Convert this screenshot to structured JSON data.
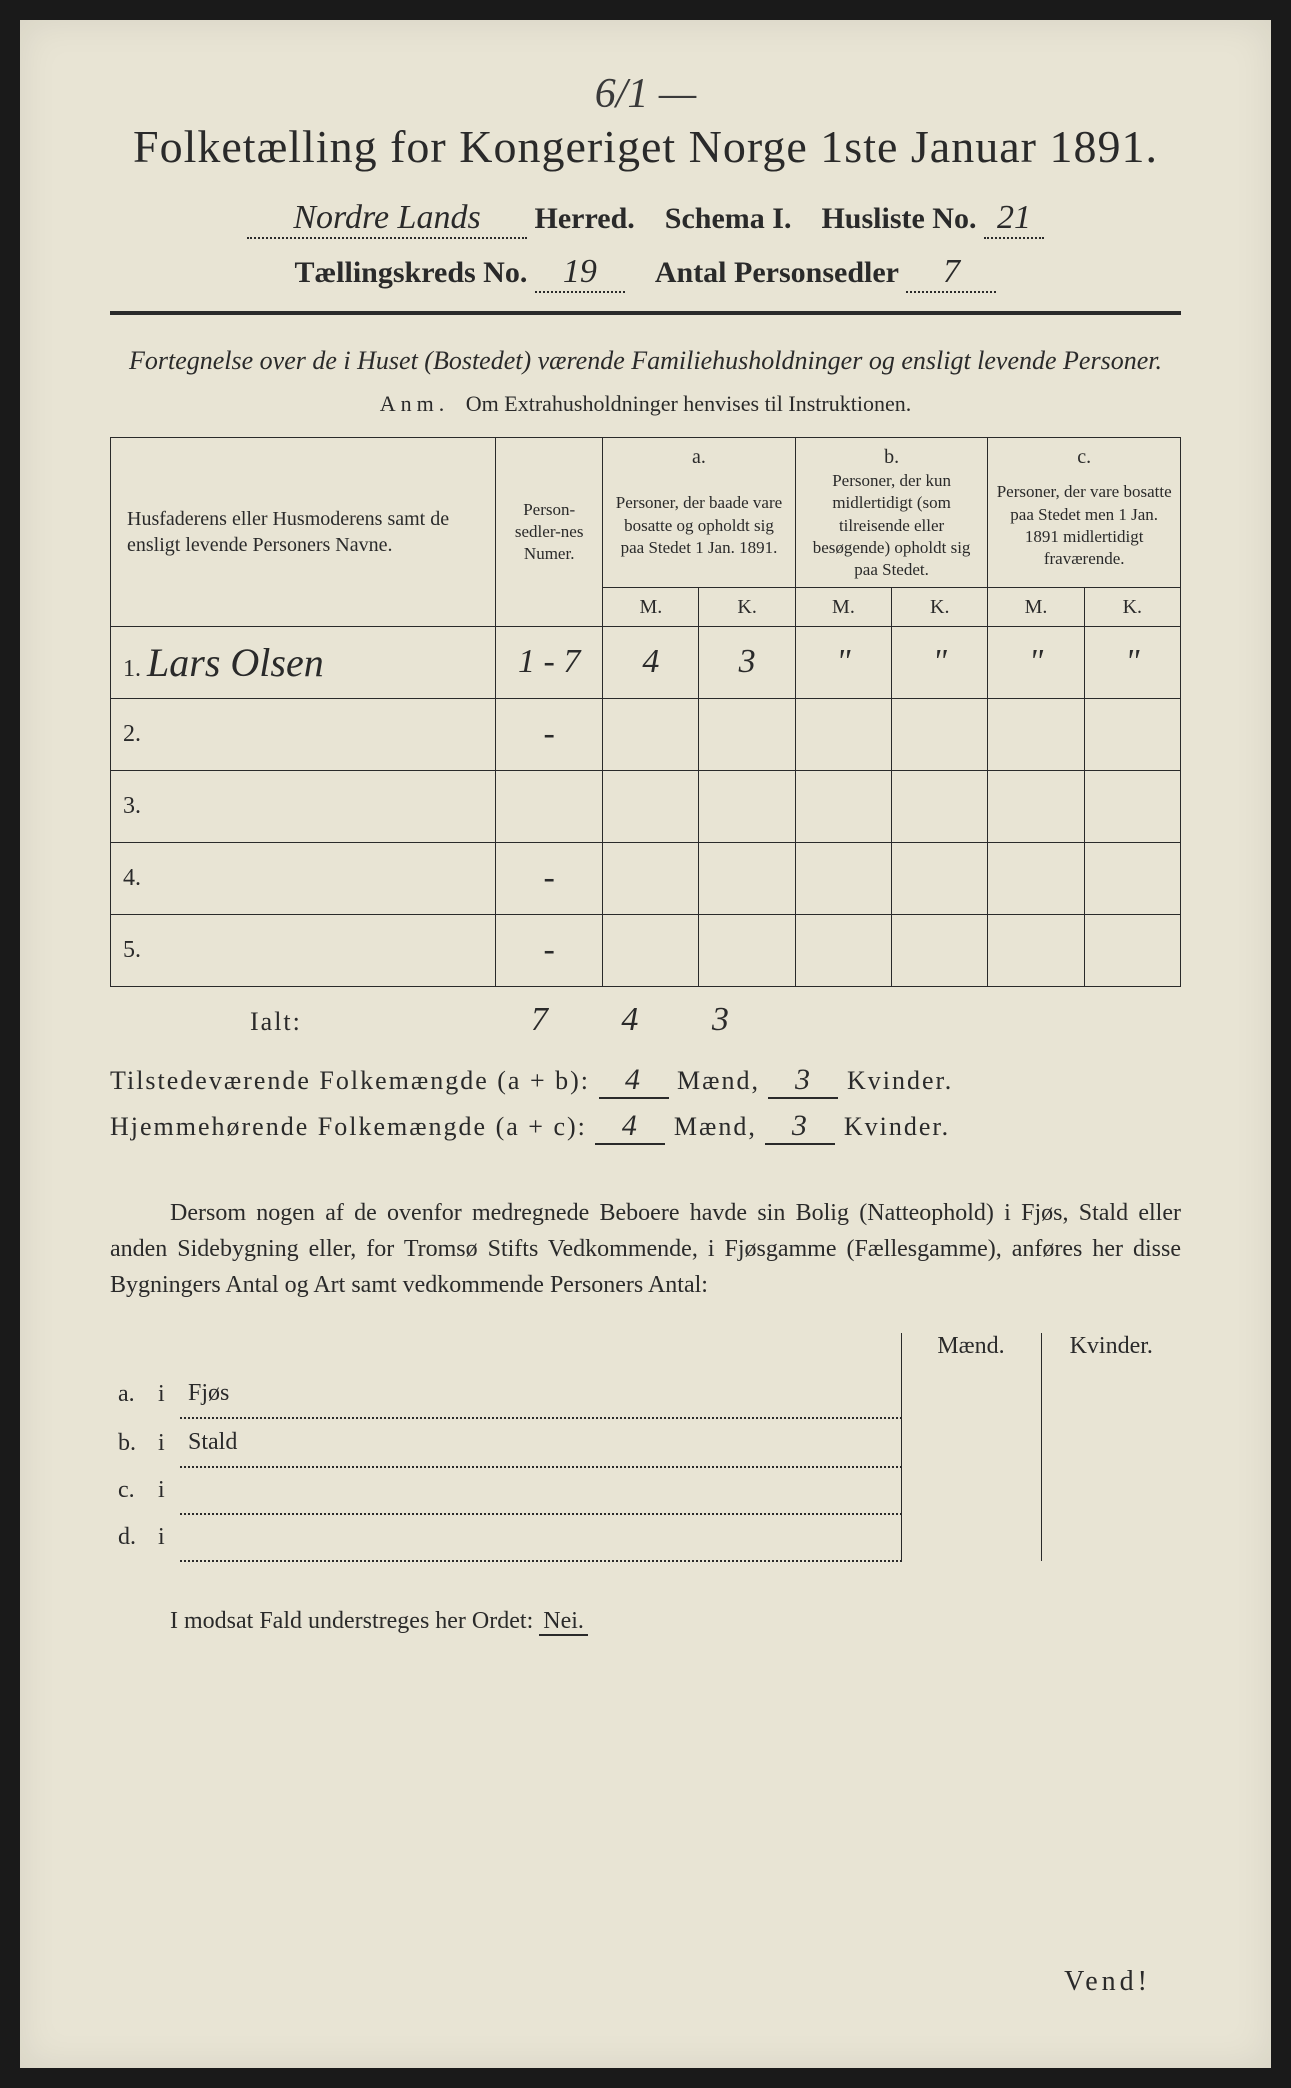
{
  "page_annotation": "6/1 —",
  "title": "Folketælling for Kongeriget Norge 1ste Januar 1891.",
  "header": {
    "herred_value": "Nordre Lands",
    "herred_label": "Herred.",
    "schema_label": "Schema I.",
    "husliste_label": "Husliste No.",
    "husliste_value": "21",
    "kreds_label": "Tællingskreds No.",
    "kreds_value": "19",
    "antal_label": "Antal Personsedler",
    "antal_value": "7"
  },
  "subtitle": "Fortegnelse over de i Huset (Bostedet) værende Familiehusholdninger og ensligt levende Personer.",
  "anm": {
    "label": "Anm.",
    "text": "Om Extrahusholdninger henvises til Instruktionen."
  },
  "table": {
    "col_names": "Husfaderens eller Husmoderens samt de ensligt levende Personers Navne.",
    "col_num": "Person-sedler-nes Numer.",
    "col_a_label": "a.",
    "col_a_desc": "Personer, der baade vare bosatte og opholdt sig paa Stedet 1 Jan. 1891.",
    "col_b_label": "b.",
    "col_b_desc": "Personer, der kun midlertidigt (som tilreisende eller besøgende) opholdt sig paa Stedet.",
    "col_c_label": "c.",
    "col_c_desc": "Personer, der vare bosatte paa Stedet men 1 Jan. 1891 midlertidigt fraværende.",
    "m": "M.",
    "k": "K.",
    "rows": [
      {
        "n": "1.",
        "name": "Lars Olsen",
        "num": "1 - 7",
        "aM": "4",
        "aK": "3",
        "bM": "\"",
        "bK": "\"",
        "cM": "\"",
        "cK": "\""
      },
      {
        "n": "2.",
        "name": "",
        "num": "-",
        "aM": "",
        "aK": "",
        "bM": "",
        "bK": "",
        "cM": "",
        "cK": ""
      },
      {
        "n": "3.",
        "name": "",
        "num": "",
        "aM": "",
        "aK": "",
        "bM": "",
        "bK": "",
        "cM": "",
        "cK": ""
      },
      {
        "n": "4.",
        "name": "",
        "num": "-",
        "aM": "",
        "aK": "",
        "bM": "",
        "bK": "",
        "cM": "",
        "cK": ""
      },
      {
        "n": "5.",
        "name": "",
        "num": "-",
        "aM": "",
        "aK": "",
        "bM": "",
        "bK": "",
        "cM": "",
        "cK": ""
      }
    ],
    "totals": {
      "num": "7",
      "aM": "4",
      "aK": "3"
    }
  },
  "ialt_label": "Ialt:",
  "summary": {
    "line1_label": "Tilstedeværende Folkemængde (a + b):",
    "line2_label": "Hjemmehørende Folkemængde (a + c):",
    "maend": "Mænd,",
    "kvinder": "Kvinder.",
    "l1_m": "4",
    "l1_k": "3",
    "l2_m": "4",
    "l2_k": "3"
  },
  "paragraph": "Dersom nogen af de ovenfor medregnede Beboere havde sin Bolig (Natteophold) i Fjøs, Stald eller anden Sidebygning eller, for Tromsø Stifts Vedkommende, i Fjøsgamme (Fællesgamme), anføres her disse Bygningers Antal og Art samt vedkommende Personers Antal:",
  "bottom_table": {
    "maend": "Mænd.",
    "kvinder": "Kvinder.",
    "rows": [
      {
        "label": "a.",
        "i": "i",
        "text": "Fjøs"
      },
      {
        "label": "b.",
        "i": "i",
        "text": "Stald"
      },
      {
        "label": "c.",
        "i": "i",
        "text": ""
      },
      {
        "label": "d.",
        "i": "i",
        "text": ""
      }
    ]
  },
  "nei_line": "I modsat Fald understreges her Ordet:",
  "nei": "Nei.",
  "vend": "Vend!",
  "colors": {
    "paper": "#e8e4d4",
    "ink": "#2a2a2a",
    "background": "#1a1a1a"
  }
}
